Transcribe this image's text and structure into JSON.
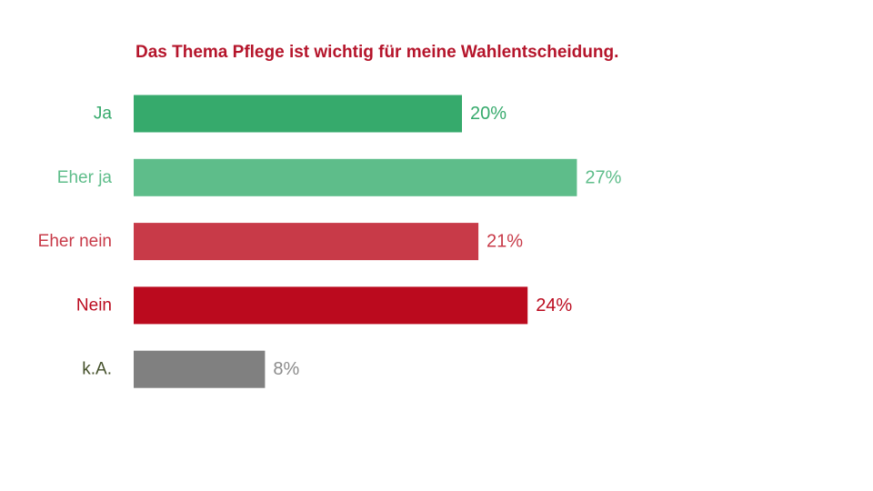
{
  "chart_data": {
    "type": "bar",
    "orientation": "horizontal",
    "title": "Das Thema Pflege ist wichtig für meine Wahlentscheidung.",
    "categories": [
      "Ja",
      "Eher ja",
      "Eher nein",
      "Nein",
      "k.A."
    ],
    "values": [
      20,
      27,
      21,
      24,
      8
    ],
    "value_labels": [
      "20%",
      "27%",
      "21%",
      "24%",
      "8%"
    ],
    "bar_colors": [
      "#36aa6c",
      "#5ebd8a",
      "#c83a48",
      "#bb0a1e",
      "#808080"
    ],
    "label_colors": [
      "#36aa6c",
      "#5ebd8a",
      "#c83a48",
      "#bb0a1e",
      "#44502a"
    ],
    "value_label_colors": [
      "#36aa6c",
      "#5ebd8a",
      "#c83a48",
      "#bb0a1e",
      "#8c8c8c"
    ],
    "xlim": [
      0,
      30
    ],
    "grid": false,
    "legend": "none",
    "title_color": "#b5152b"
  }
}
